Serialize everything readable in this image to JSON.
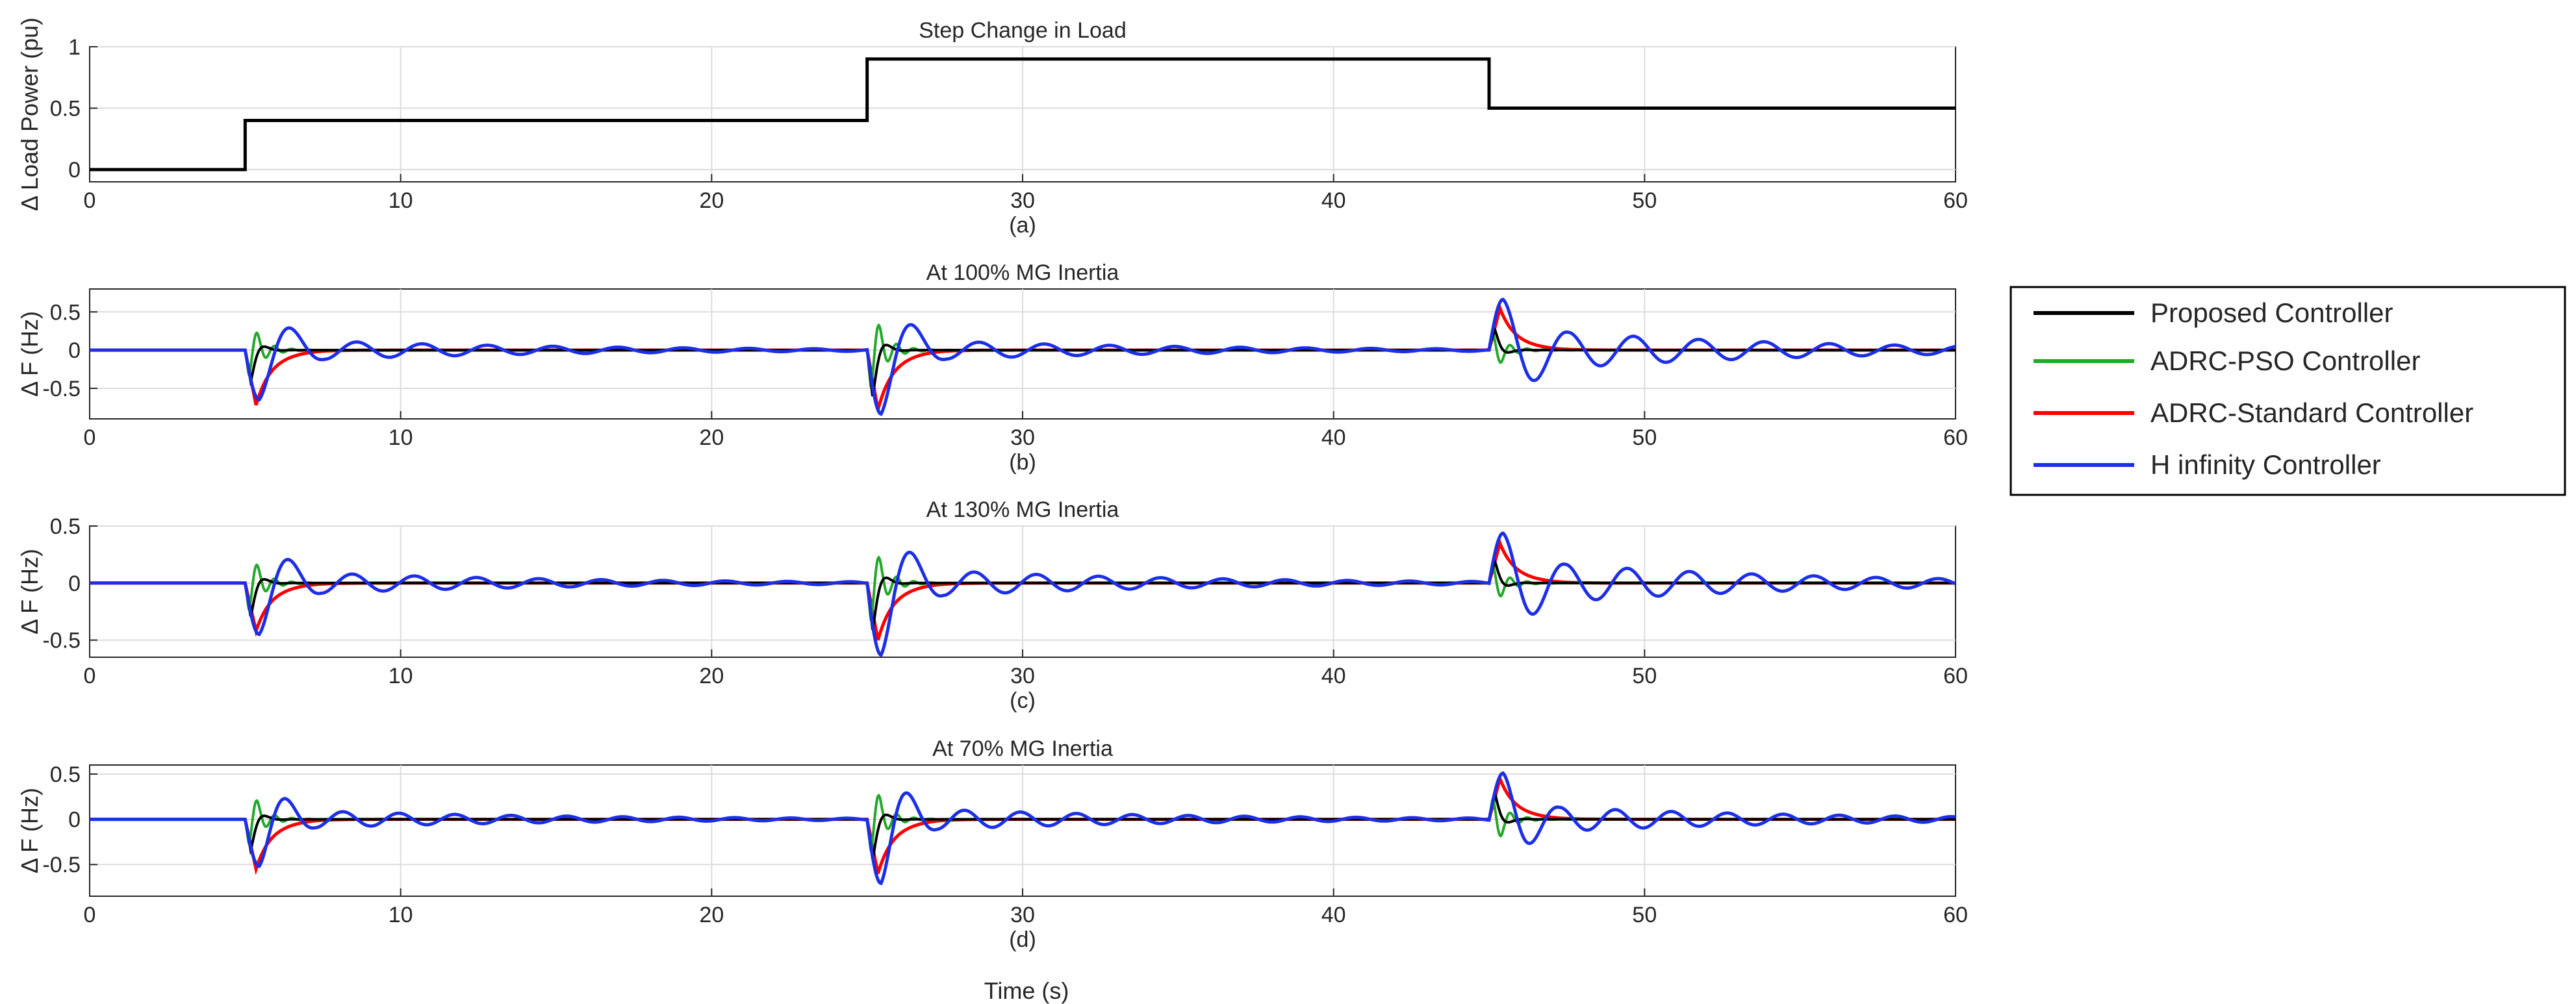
{
  "legend": {
    "placement": "right",
    "entries": [
      {
        "label": "Proposed Controller",
        "color": "#000000"
      },
      {
        "label": "ADRC-PSO Controller",
        "color": "#22a82a"
      },
      {
        "label": "ADRC-Standard Controller",
        "color": "#ff0000"
      },
      {
        "label": "H infinity Controller",
        "color": "#1c2fe6"
      }
    ]
  },
  "xlabel": "Time (s)",
  "chart_data": [
    {
      "type": "line",
      "title": "Step Change in Load",
      "caption": "(a)",
      "ylabel": "Δ Load Power (pu)",
      "xlabel": "",
      "xlim": [
        0,
        60
      ],
      "ylim": [
        -0.1,
        1
      ],
      "xticks": [
        0,
        10,
        20,
        30,
        40,
        50,
        60
      ],
      "yticks": [
        0,
        0.5,
        1
      ],
      "ytick_labels": [
        "0",
        "0.5",
        "1"
      ],
      "grid": true,
      "series": [
        {
          "color": "#000000",
          "x": [
            0,
            5,
            5,
            25,
            25,
            45,
            45,
            60
          ],
          "y": [
            0,
            0,
            0.4,
            0.4,
            0.9,
            0.9,
            0.5,
            0.5
          ]
        }
      ]
    },
    {
      "type": "line",
      "title": "At 100% MG Inertia",
      "caption": "(b)",
      "ylabel": "Δ F (Hz)",
      "xlabel": "",
      "xlim": [
        0,
        60
      ],
      "ylim": [
        -0.9,
        0.8
      ],
      "xticks": [
        0,
        10,
        20,
        30,
        40,
        50,
        60
      ],
      "yticks": [
        -0.5,
        0,
        0.5
      ],
      "ytick_labels": [
        "-0.5",
        "0",
        "0.5"
      ],
      "grid": true,
      "events": [
        {
          "t": 5,
          "Proposed": -0.42,
          "ADRC-PSO": 0.15,
          "ADRC-Standard": -0.72,
          "H infinity": {
            "first_peak": -0.65,
            "second_peak": 0.28,
            "period": 2.1,
            "decay": 0.5
          }
        },
        {
          "t": 25,
          "Proposed": -0.62,
          "ADRC-PSO": 0.2,
          "ADRC-Standard": -0.78,
          "H infinity": {
            "first_peak": -0.85,
            "second_peak": 0.33,
            "period": 2.1,
            "decay": 0.5
          }
        },
        {
          "t": 45,
          "Proposed": 0.28,
          "ADRC-PSO": -0.15,
          "ADRC-Standard": 0.55,
          "H infinity": {
            "first_peak": 0.65,
            "second_peak": -0.38,
            "period": 2.1,
            "decay": 0.5
          }
        }
      ]
    },
    {
      "type": "line",
      "title": "At 130% MG Inertia",
      "caption": "(c)",
      "ylabel": "Δ F (Hz)",
      "xlabel": "",
      "xlim": [
        0,
        60
      ],
      "ylim": [
        -0.65,
        0.5
      ],
      "xticks": [
        0,
        10,
        20,
        30,
        40,
        50,
        60
      ],
      "yticks": [
        -0.5,
        0,
        0.5
      ],
      "ytick_labels": [
        "-0.5",
        "0",
        "0.5"
      ],
      "grid": true,
      "events": [
        {
          "t": 5,
          "Proposed": -0.3,
          "ADRC-PSO": 0.1,
          "ADRC-Standard": -0.42,
          "H infinity": {
            "first_peak": -0.45,
            "second_peak": 0.2,
            "period": 2.0,
            "decay": 0.5
          }
        },
        {
          "t": 25,
          "Proposed": -0.42,
          "ADRC-PSO": 0.15,
          "ADRC-Standard": -0.5,
          "H infinity": {
            "first_peak": -0.62,
            "second_peak": 0.25,
            "period": 2.0,
            "decay": 0.5
          }
        },
        {
          "t": 45,
          "Proposed": 0.2,
          "ADRC-PSO": -0.1,
          "ADRC-Standard": 0.35,
          "H infinity": {
            "first_peak": 0.45,
            "second_peak": -0.28,
            "period": 2.0,
            "decay": 0.5
          }
        }
      ]
    },
    {
      "type": "line",
      "title": "At 70% MG Inertia",
      "caption": "(d)",
      "ylabel": "Δ F (Hz)",
      "xlabel": "Time (s)",
      "xlim": [
        0,
        60
      ],
      "ylim": [
        -0.85,
        0.6
      ],
      "xticks": [
        0,
        10,
        20,
        30,
        40,
        50,
        60
      ],
      "yticks": [
        -0.5,
        0,
        0.5
      ],
      "ytick_labels": [
        "-0.5",
        "0",
        "0.5"
      ],
      "grid": true,
      "events": [
        {
          "t": 5,
          "Proposed": -0.35,
          "ADRC-PSO": 0.2,
          "ADRC-Standard": -0.55,
          "H infinity": {
            "first_peak": -0.52,
            "second_peak": 0.22,
            "period": 1.8,
            "decay": 0.55
          }
        },
        {
          "t": 25,
          "Proposed": -0.45,
          "ADRC-PSO": 0.25,
          "ADRC-Standard": -0.6,
          "H infinity": {
            "first_peak": -0.7,
            "second_peak": 0.27,
            "period": 1.8,
            "decay": 0.55
          }
        },
        {
          "t": 45,
          "Proposed": 0.3,
          "ADRC-PSO": -0.2,
          "ADRC-Standard": 0.45,
          "H infinity": {
            "first_peak": 0.52,
            "second_peak": -0.27,
            "period": 1.8,
            "decay": 0.55
          }
        }
      ]
    }
  ]
}
